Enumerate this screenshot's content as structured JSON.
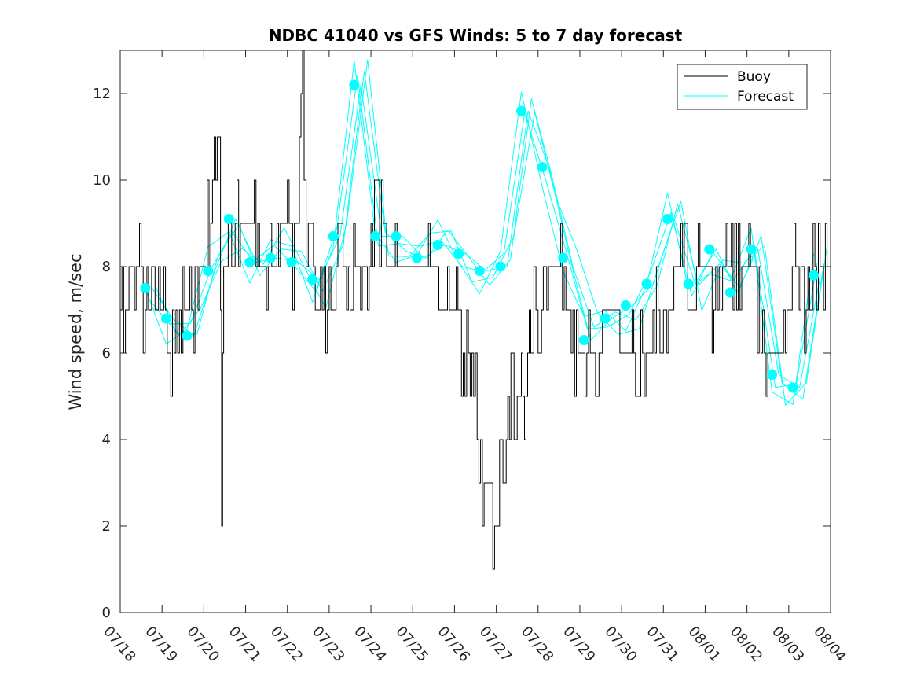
{
  "chart_data": {
    "type": "line",
    "title": "NDBC 41040 vs GFS Winds: 5 to 7 day forecast",
    "xlabel": "",
    "ylabel": "Wind speed, m/sec",
    "x_ticks": [
      "07/18",
      "07/19",
      "07/20",
      "07/21",
      "07/22",
      "07/23",
      "07/24",
      "07/25",
      "07/26",
      "07/27",
      "07/28",
      "07/29",
      "07/30",
      "07/31",
      "08/01",
      "08/02",
      "08/03",
      "08/04"
    ],
    "xlim_days": [
      0,
      17
    ],
    "ylim": [
      0,
      13
    ],
    "y_ticks": [
      0,
      2,
      4,
      6,
      8,
      10,
      12
    ],
    "grid": false,
    "legend": {
      "placement": "top-right",
      "entries": [
        "Buoy",
        "Forecast"
      ]
    },
    "colors": {
      "buoy": "#000000",
      "forecast": "#00ffff"
    },
    "series": [
      {
        "name": "Buoy",
        "x": [
          0.0,
          0.25,
          0.3,
          0.5,
          0.6,
          0.75,
          1.0,
          1.25,
          1.5,
          1.75,
          1.9,
          2.0,
          2.25,
          2.4,
          2.45,
          2.5,
          2.75,
          3.0,
          3.25,
          3.5,
          3.75,
          4.0,
          4.25,
          4.4,
          4.5,
          4.75,
          5.0,
          5.25,
          5.5,
          5.75,
          6.0,
          6.25,
          6.5,
          6.75,
          7.0,
          7.25,
          7.5,
          7.75,
          8.0,
          8.25,
          8.5,
          8.75,
          9.0,
          9.2,
          9.35,
          9.5,
          9.6,
          9.75,
          9.9,
          10.0,
          10.25,
          10.5,
          10.75,
          11.0,
          11.25,
          11.5,
          11.75,
          12.0,
          12.25,
          12.5,
          12.75,
          13.0,
          13.25,
          13.5,
          13.75,
          14.0,
          14.25,
          14.5,
          14.75,
          15.0,
          15.25,
          15.5,
          15.75,
          16.0,
          16.25,
          16.5,
          16.75,
          17.0
        ],
        "values": [
          7,
          7,
          8,
          8,
          7,
          7,
          7,
          6,
          7,
          7,
          8,
          8,
          9,
          11,
          3,
          8,
          9,
          9,
          9,
          8,
          8,
          9,
          8,
          13,
          8,
          7,
          7,
          8,
          7,
          8,
          8,
          9,
          8,
          8,
          8,
          8,
          8,
          7,
          7,
          6,
          5,
          3,
          2,
          3,
          5,
          4,
          5,
          5,
          6,
          7,
          8,
          8,
          7,
          6,
          6,
          6,
          7,
          6,
          6,
          6,
          6,
          7,
          7,
          8,
          7,
          8,
          7,
          8,
          8,
          8,
          7,
          6,
          6,
          7,
          8,
          7,
          8,
          8
        ]
      },
      {
        "name": "Forecast",
        "x": [
          0.6,
          1.1,
          1.6,
          2.1,
          2.6,
          3.1,
          3.6,
          4.1,
          4.6,
          5.1,
          5.6,
          6.1,
          6.6,
          7.1,
          7.6,
          8.1,
          8.6,
          9.1,
          9.6,
          10.1,
          10.6,
          11.1,
          11.6,
          12.1,
          12.6,
          13.1,
          13.6,
          14.1,
          14.6,
          15.1,
          15.6,
          16.1,
          16.6
        ],
        "values": [
          7.5,
          6.8,
          6.4,
          7.9,
          9.1,
          8.1,
          8.2,
          8.1,
          7.7,
          8.7,
          12.2,
          8.7,
          8.7,
          8.2,
          8.5,
          8.3,
          7.9,
          8.0,
          11.6,
          10.3,
          8.2,
          6.3,
          6.8,
          7.1,
          7.6,
          9.1,
          7.6,
          8.4,
          7.4,
          8.4,
          5.5,
          5.2,
          7.8
        ]
      }
    ]
  }
}
